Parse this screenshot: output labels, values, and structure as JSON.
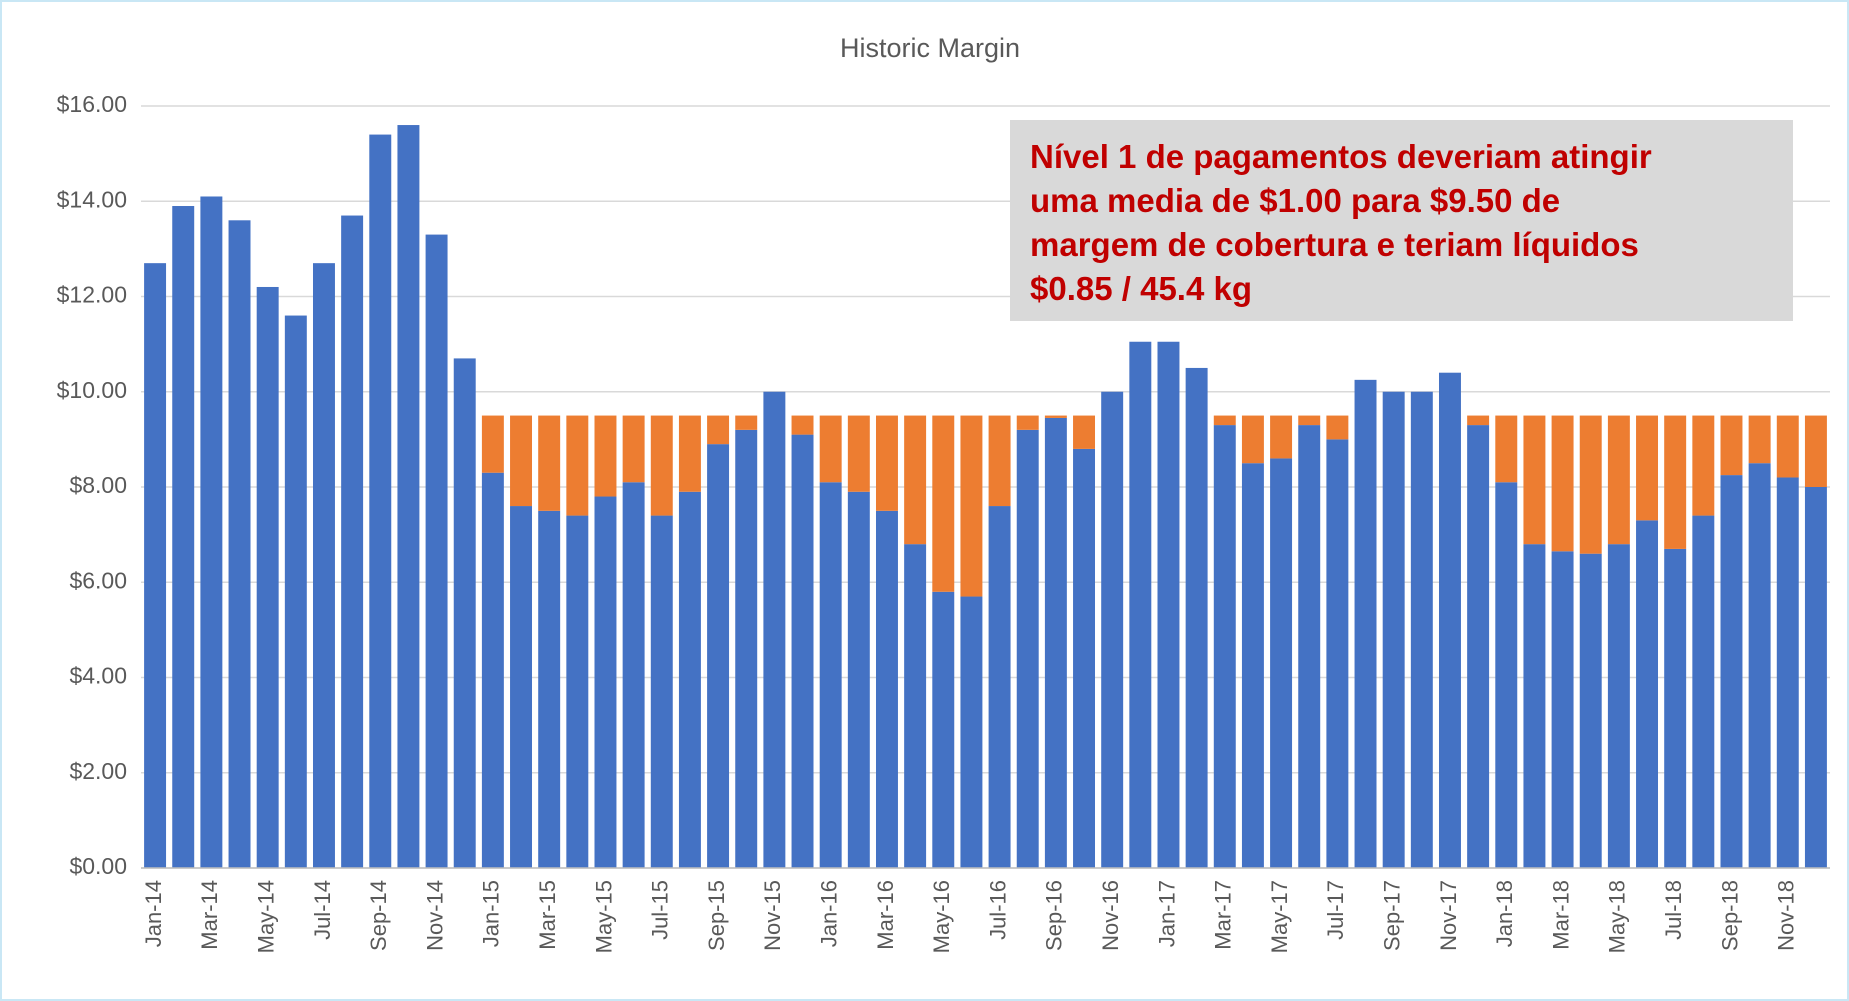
{
  "chart_data": {
    "type": "stacked_bar",
    "title": "Historic Margin",
    "annotation": [
      "Nível 1 de pagamentos deveriam atingir",
      "uma media de $1.00 para $9.50 de",
      "margem de cobertura e teriam líquidos",
      "$0.85 / 45.4 kg"
    ],
    "categories": [
      "Jan-14",
      null,
      "Mar-14",
      null,
      "May-14",
      null,
      "Jul-14",
      null,
      "Sep-14",
      null,
      "Nov-14",
      null,
      "Jan-15",
      null,
      "Mar-15",
      null,
      "May-15",
      null,
      "Jul-15",
      null,
      "Sep-15",
      null,
      "Nov-15",
      null,
      "Jan-16",
      null,
      "Mar-16",
      null,
      "May-16",
      null,
      "Jul-16",
      null,
      "Sep-16",
      null,
      "Nov-16",
      null,
      "Jan-17",
      null,
      "Mar-17",
      null,
      "May-17",
      null,
      "Jul-17",
      null,
      "Sep-17",
      null,
      "Nov-17",
      null,
      "Jan-18",
      null,
      "Mar-18",
      null,
      "May-18",
      null,
      "Jul-18",
      null,
      "Sep-18",
      null,
      "Nov-18",
      null
    ],
    "series": [
      {
        "color": "#4472c4",
        "values": [
          12.7,
          13.9,
          14.1,
          13.6,
          12.2,
          11.6,
          12.7,
          13.7,
          15.4,
          15.6,
          13.3,
          10.7,
          8.3,
          7.6,
          7.5,
          7.4,
          7.8,
          8.1,
          7.4,
          7.9,
          8.9,
          9.2,
          10.0,
          9.1,
          8.1,
          7.9,
          7.5,
          6.8,
          5.8,
          5.7,
          7.6,
          9.2,
          9.45,
          8.8,
          10.0,
          11.05,
          11.05,
          10.5,
          9.3,
          8.5,
          8.6,
          9.3,
          9.0,
          10.25,
          10.0,
          10.0,
          10.4,
          9.3,
          8.1,
          6.8,
          6.65,
          6.6,
          6.8,
          7.3,
          6.7,
          7.4,
          8.25,
          8.5,
          8.2,
          8.0
        ]
      },
      {
        "color": "#ed7d31",
        "values": [
          0,
          0,
          0,
          0,
          0,
          0,
          0,
          0,
          0,
          0,
          0,
          0,
          1.2,
          1.9,
          2.0,
          2.1,
          1.7,
          1.4,
          2.1,
          1.6,
          0.6,
          0.3,
          0,
          0.4,
          1.4,
          1.6,
          2.0,
          2.7,
          3.7,
          3.8,
          1.9,
          0.3,
          0.05,
          0.7,
          0,
          0,
          0,
          0,
          0.2,
          1.0,
          0.9,
          0.2,
          0.5,
          0,
          0,
          0,
          0,
          0.2,
          1.4,
          2.7,
          2.85,
          2.9,
          2.7,
          2.2,
          2.8,
          2.1,
          1.25,
          1.0,
          1.3,
          1.5
        ]
      }
    ],
    "ylim": [
      0,
      16
    ],
    "yticks": [
      {
        "value": 0,
        "label": "$0.00"
      },
      {
        "value": 2,
        "label": "$2.00"
      },
      {
        "value": 4,
        "label": "$4.00"
      },
      {
        "value": 6,
        "label": "$6.00"
      },
      {
        "value": 8,
        "label": "$8.00"
      },
      {
        "value": 10,
        "label": "$10.00"
      },
      {
        "value": 12,
        "label": "$12.00"
      },
      {
        "value": 14,
        "label": "$14.00"
      },
      {
        "value": 16,
        "label": "$16.00"
      }
    ],
    "grid": true
  }
}
